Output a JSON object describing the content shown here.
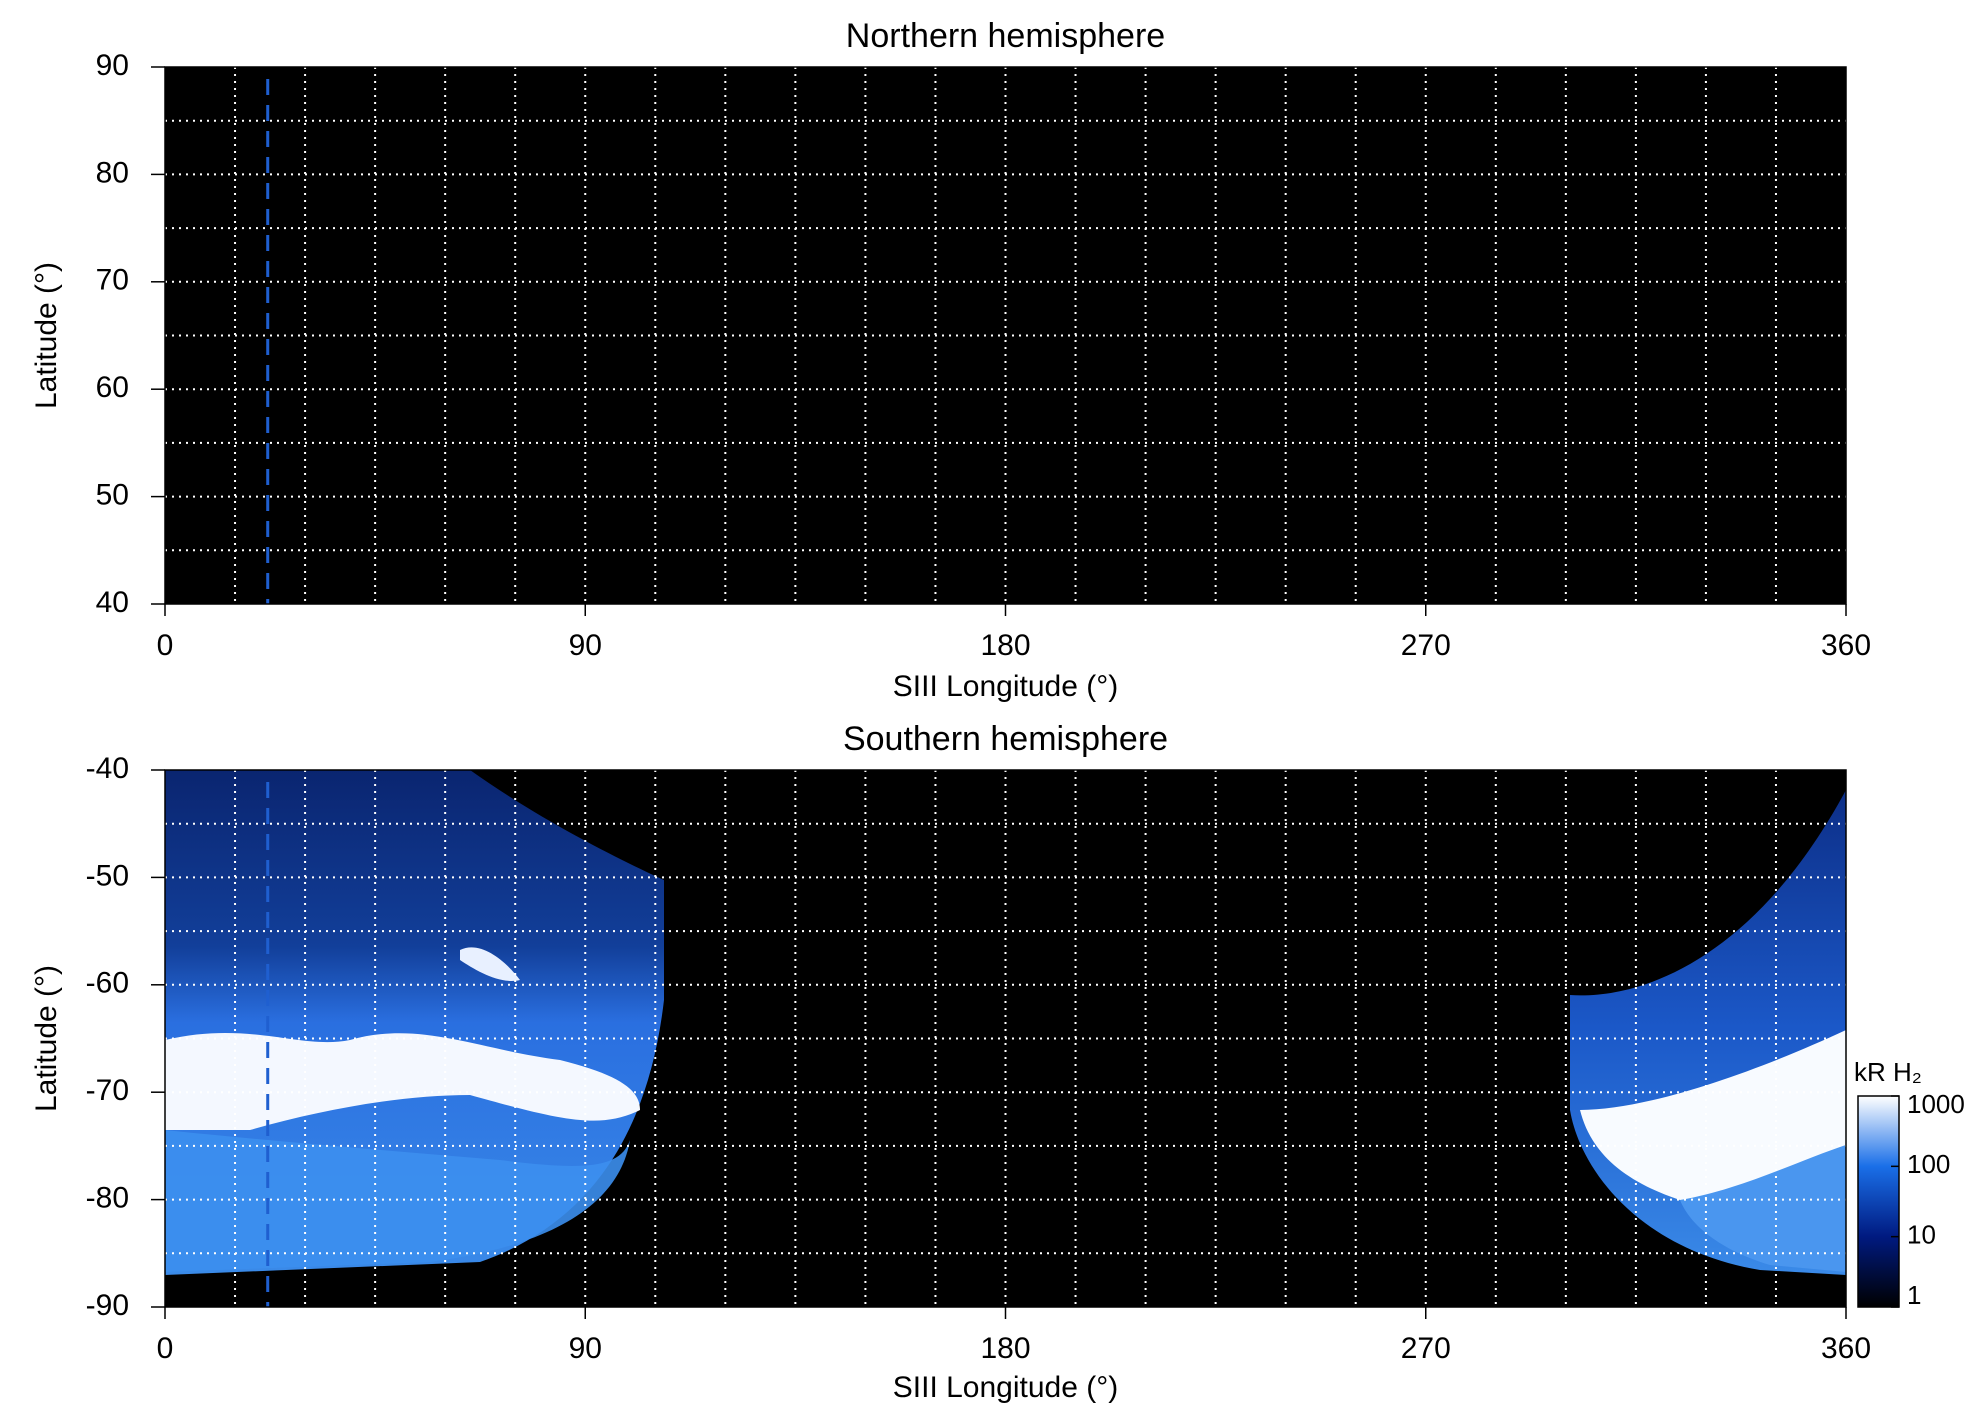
{
  "chart_data": [
    {
      "type": "heatmap",
      "title": "Northern hemisphere",
      "x_label": "SIII Longitude (°)",
      "y_label": "Latitude (°)",
      "xlim": [
        0,
        360
      ],
      "ylim": [
        40,
        90
      ],
      "xticks": [
        0,
        90,
        180,
        270,
        360
      ],
      "yticks": [
        40,
        50,
        60,
        70,
        80,
        90
      ],
      "grid": true,
      "xgrid": [
        15,
        30,
        45,
        60,
        75,
        90,
        105,
        120,
        135,
        150,
        165,
        180,
        195,
        210,
        225,
        240,
        255,
        270,
        285,
        300,
        315,
        330,
        345
      ],
      "ygrid": [
        45,
        50,
        55,
        60,
        65,
        70,
        75,
        80,
        85
      ],
      "vline": {
        "x": 22,
        "color": "#1f5fd0"
      }
    },
    {
      "type": "heatmap",
      "title": "Southern hemisphere",
      "x_label": "SIII Longitude (°)",
      "y_label": "Latitude (°)",
      "xlim": [
        0,
        360
      ],
      "ylim": [
        -90,
        -40
      ],
      "xticks": [
        0,
        90,
        180,
        270,
        360
      ],
      "yticks": [
        -90,
        -80,
        -70,
        -60,
        -50,
        -40
      ],
      "grid": true,
      "xgrid": [
        15,
        30,
        45,
        60,
        75,
        90,
        105,
        120,
        135,
        150,
        165,
        180,
        195,
        210,
        225,
        240,
        255,
        270,
        285,
        300,
        315,
        330,
        345
      ],
      "ygrid": [
        -85,
        -80,
        -75,
        -70,
        -65,
        -60,
        -55,
        -50,
        -45
      ],
      "vline": {
        "x": 22,
        "color": "#1f5fd0"
      },
      "colorbar": {
        "label": "kR H₂",
        "scale": "log",
        "lim": [
          1,
          1000
        ],
        "ticks": [
          1,
          10,
          100,
          1000
        ],
        "colors": [
          "#000000",
          "#001a80",
          "#1a6fe8",
          "#ffffff"
        ]
      }
    }
  ]
}
